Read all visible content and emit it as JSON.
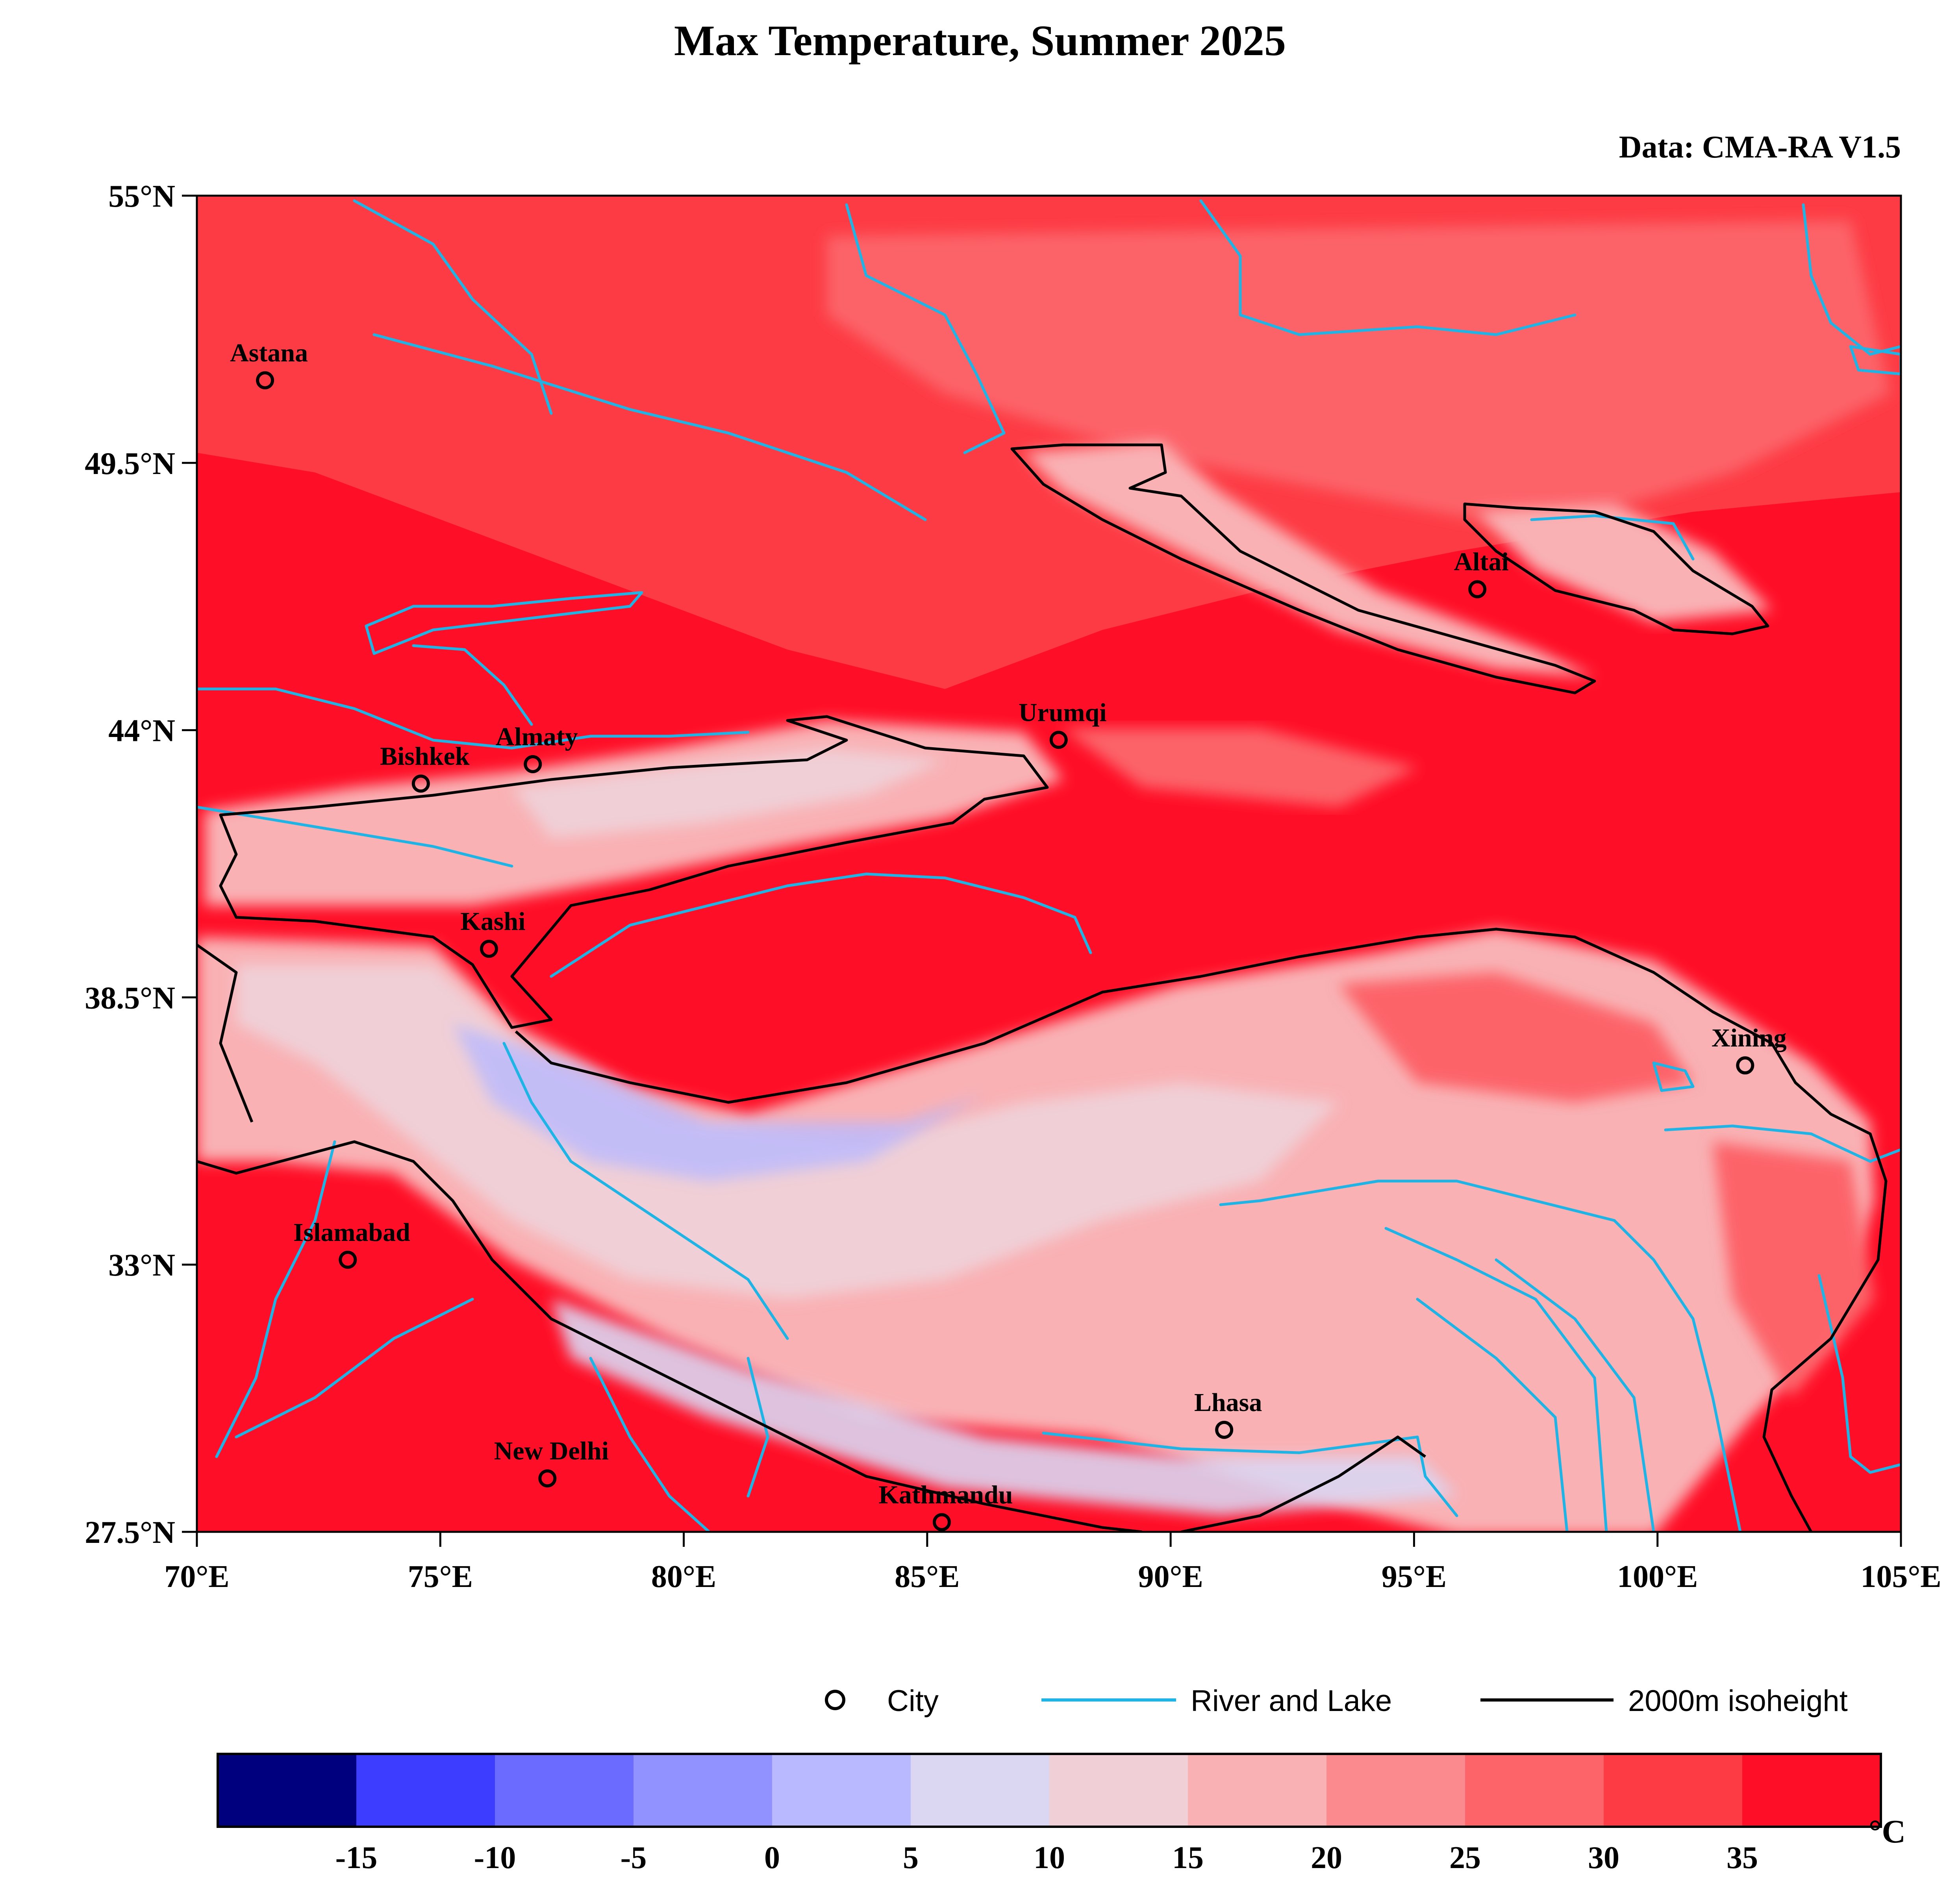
{
  "title": "Max Temperature, Summer 2025",
  "source": "Data: CMA-RA V1.5",
  "axes": {
    "lat_ticks": [
      "55°N",
      "49.5°N",
      "44°N",
      "38.5°N",
      "33°N",
      "27.5°N"
    ],
    "lon_ticks": [
      "70°E",
      "75°E",
      "80°E",
      "85°E",
      "90°E",
      "95°E",
      "100°E",
      "105°E"
    ],
    "lat_range": [
      27.5,
      55
    ],
    "lon_range": [
      70,
      105
    ]
  },
  "cities": [
    {
      "name": "Astana",
      "lon": 71.4,
      "lat": 51.2
    },
    {
      "name": "Bishkek",
      "lon": 74.6,
      "lat": 42.9
    },
    {
      "name": "Almaty",
      "lon": 76.9,
      "lat": 43.3
    },
    {
      "name": "Urumqi",
      "lon": 87.7,
      "lat": 43.8
    },
    {
      "name": "Altai",
      "lon": 96.3,
      "lat": 46.9
    },
    {
      "name": "Kashi",
      "lon": 76.0,
      "lat": 39.5
    },
    {
      "name": "Xining",
      "lon": 101.8,
      "lat": 37.1
    },
    {
      "name": "Islamabad",
      "lon": 73.1,
      "lat": 33.1
    },
    {
      "name": "Lhasa",
      "lon": 91.1,
      "lat": 29.6
    },
    {
      "name": "New Delhi",
      "lon": 77.2,
      "lat": 28.6
    },
    {
      "name": "Kathmandu",
      "lon": 85.3,
      "lat": 27.7
    }
  ],
  "legend": {
    "city": "City",
    "river": "River and Lake",
    "isoheight": "2000m isoheight"
  },
  "colorbar": {
    "unit": "°C",
    "labels": [
      "-15",
      "-10",
      "-5",
      "0",
      "5",
      "10",
      "15",
      "20",
      "25",
      "30",
      "35"
    ],
    "colors": [
      "#00007f",
      "#3d3dff",
      "#6b6bff",
      "#9191ff",
      "#b9b9ff",
      "#dbd6f2",
      "#f0cfd6",
      "#f9b1b4",
      "#fb8a8e",
      "#fc6469",
      "#fd3b44",
      "#ff0f27"
    ]
  },
  "colors": {
    "river": "#1eb4e6",
    "contour": "#000000",
    "hot": "#ff0f27",
    "warm": "#fd3b44",
    "mild": "#fc6469",
    "cool": "#f9b1b4",
    "cold": "#f0cfd6",
    "coldest": "#b9b9ff"
  }
}
